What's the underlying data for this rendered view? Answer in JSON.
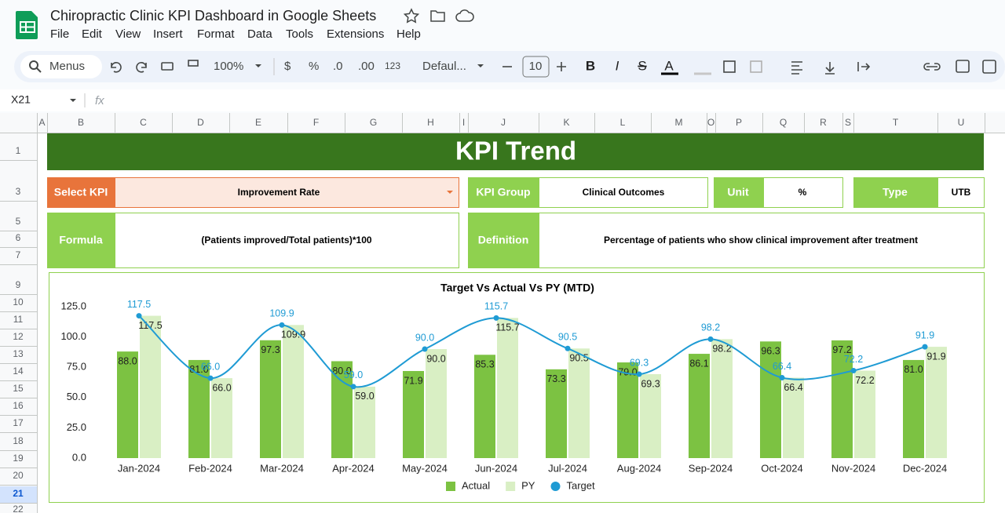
{
  "app": {
    "title": "Chiropractic Clinic KPI Dashboard in Google Sheets",
    "menus": [
      "File",
      "Edit",
      "View",
      "Insert",
      "Format",
      "Data",
      "Tools",
      "Extensions",
      "Help"
    ]
  },
  "toolbar": {
    "search": "Menus",
    "zoom": "100%",
    "currency": "$",
    "percent": "%",
    "decimal_decrease": ".0",
    "decimal_increase": ".00",
    "number_format": "123",
    "font": "Defaul...",
    "font_size": "10",
    "format": [
      "B",
      "I",
      "S",
      "A"
    ]
  },
  "formula_bar": {
    "cell": "X21",
    "fx": "fx"
  },
  "sheet": {
    "columns": [
      "A",
      "B",
      "C",
      "D",
      "E",
      "F",
      "G",
      "H",
      "I",
      "J",
      "K",
      "L",
      "M",
      "O",
      "P",
      "Q",
      "R",
      "S",
      "T",
      "U"
    ],
    "rows": [
      "1",
      "3",
      "5",
      "6",
      "7",
      "9",
      "10",
      "11",
      "12",
      "13",
      "14",
      "15",
      "16",
      "17",
      "18",
      "19",
      "20",
      "21",
      "22"
    ]
  },
  "dashboard": {
    "banner": "KPI Trend",
    "select_kpi": {
      "label": "Select KPI",
      "value": "Improvement Rate"
    },
    "kpi_group": {
      "label": "KPI Group",
      "value": "Clinical Outcomes"
    },
    "unit": {
      "label": "Unit",
      "value": "%"
    },
    "type": {
      "label": "Type",
      "value": "UTB"
    },
    "formula": {
      "label": "Formula",
      "value": "(Patients improved/Total patients)*100"
    },
    "definition": {
      "label": "Definition",
      "value": "Percentage of patients who show clinical improvement after treatment"
    }
  },
  "chart_data": {
    "type": "bar",
    "title": "Target Vs Actual Vs PY (MTD)",
    "categories": [
      "Jan-2024",
      "Feb-2024",
      "Mar-2024",
      "Apr-2024",
      "May-2024",
      "Jun-2024",
      "Jul-2024",
      "Aug-2024",
      "Sep-2024",
      "Oct-2024",
      "Nov-2024",
      "Dec-2024"
    ],
    "series": [
      {
        "name": "Actual",
        "type": "bar",
        "color": "#7cc242",
        "values": [
          88.0,
          81.0,
          97.3,
          80.0,
          71.9,
          85.3,
          73.3,
          79.0,
          86.1,
          96.3,
          97.2,
          81.0
        ],
        "value_labels": [
          "88.0",
          "81.0",
          "97.3",
          "80.0",
          "71.9",
          "85.3",
          "73.3",
          "79.0",
          "86.1",
          "96.3",
          "97.2",
          "81.0"
        ]
      },
      {
        "name": "PY",
        "type": "bar",
        "color": "#d9efc4",
        "values": [
          117.5,
          66.0,
          109.9,
          59.0,
          90.0,
          115.7,
          90.5,
          69.3,
          98.2,
          66.4,
          72.2,
          91.9
        ],
        "value_labels": [
          "117.5",
          "66.0",
          "109.9",
          "59.0",
          "90.0",
          "115.7",
          "90.5",
          "69.3",
          "98.2",
          "66.4",
          "72.2",
          "91.9"
        ]
      },
      {
        "name": "Target",
        "type": "line",
        "color": "#1f9bd4",
        "values": [
          117.5,
          66.0,
          109.9,
          59.0,
          90.0,
          115.7,
          90.5,
          69.3,
          98.2,
          66.4,
          72.2,
          91.9
        ],
        "value_labels": [
          "117.5",
          "66.0",
          "109.9",
          "59.0",
          "90.0",
          "115.7",
          "90.5",
          "69.3",
          "98.2",
          "66.4",
          "72.2",
          "91.9"
        ]
      }
    ],
    "ylim": [
      0,
      125
    ],
    "yticks": [
      {
        "value": 0,
        "label": "0.0"
      },
      {
        "value": 25,
        "label": "25.0"
      },
      {
        "value": 50,
        "label": "50.0"
      },
      {
        "value": 75,
        "label": "75.0"
      },
      {
        "value": 100,
        "label": "100.0"
      },
      {
        "value": 125,
        "label": "125.0"
      }
    ],
    "legend": "bottom"
  }
}
